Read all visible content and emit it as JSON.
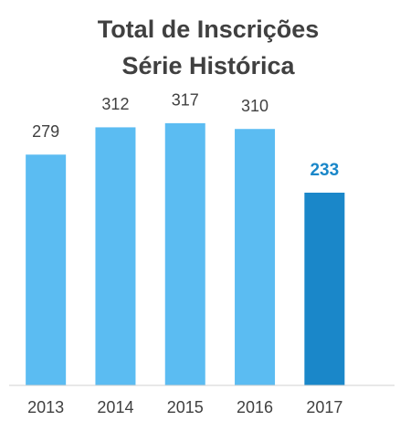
{
  "chart_data": {
    "type": "bar",
    "title": "Total de Inscrições",
    "subtitle": "Série Histórica",
    "categories": [
      "2013",
      "2014",
      "2015",
      "2016",
      "2017"
    ],
    "values": [
      279,
      312,
      317,
      310,
      233
    ],
    "colors": [
      "#5bbcf2",
      "#5bbcf2",
      "#5bbcf2",
      "#5bbcf2",
      "#1a87c9"
    ],
    "highlight_index": 4,
    "ylim": [
      0,
      350
    ]
  }
}
